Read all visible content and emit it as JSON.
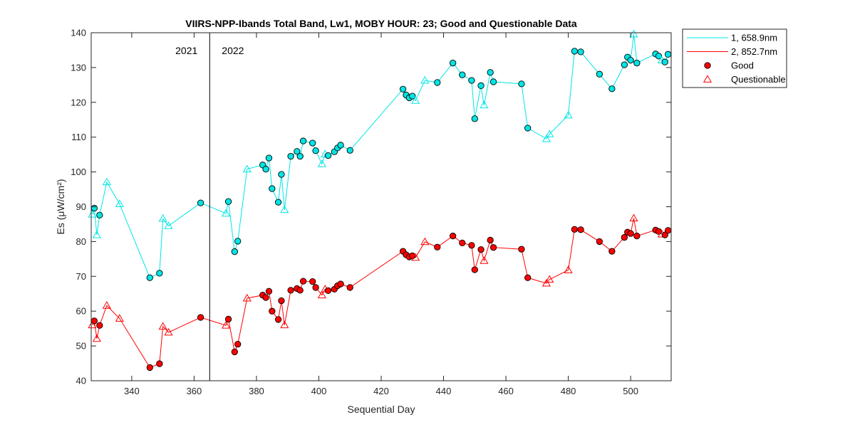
{
  "chart_data": {
    "type": "line",
    "title": "VIIRS-NPP-Ibands Total Band,  Lw1, MOBY HOUR: 23;  Good and Questionable Data",
    "xlabel": "Sequential Day",
    "ylabel": "Es (μW/cm²)",
    "xlim": [
      327,
      513
    ],
    "ylim": [
      40,
      140
    ],
    "xticks": [
      340,
      360,
      380,
      400,
      420,
      440,
      460,
      480,
      500
    ],
    "yticks": [
      40,
      50,
      60,
      70,
      80,
      90,
      100,
      110,
      120,
      130,
      140
    ],
    "grid": false,
    "year_divider": {
      "x": 365,
      "left_label": "2021",
      "right_label": "2022"
    },
    "legend": {
      "position": "outside-top-right",
      "entries": [
        "1, 658.9nm",
        "2, 852.7nm",
        "Good",
        "Questionable"
      ]
    },
    "series": [
      {
        "name": "1, 658.9nm",
        "color": "#00e5e5",
        "points": [
          {
            "x": 327.3,
            "y": 87.8,
            "q": "questionable"
          },
          {
            "x": 328.0,
            "y": 89.6,
            "q": "good"
          },
          {
            "x": 328.8,
            "y": 81.9,
            "q": "questionable"
          },
          {
            "x": 329.7,
            "y": 87.6,
            "q": "good"
          },
          {
            "x": 332.0,
            "y": 97.1,
            "q": "questionable"
          },
          {
            "x": 336.1,
            "y": 90.8,
            "q": "questionable"
          },
          {
            "x": 345.8,
            "y": 69.6,
            "q": "good"
          },
          {
            "x": 348.9,
            "y": 70.9,
            "q": "good"
          },
          {
            "x": 350.0,
            "y": 86.6,
            "q": "questionable"
          },
          {
            "x": 351.8,
            "y": 84.5,
            "q": "questionable"
          },
          {
            "x": 362.1,
            "y": 91.1,
            "q": "good"
          },
          {
            "x": 370.2,
            "y": 88.1,
            "q": "questionable"
          },
          {
            "x": 371.0,
            "y": 91.5,
            "q": "good"
          },
          {
            "x": 373.0,
            "y": 77.1,
            "q": "good"
          },
          {
            "x": 374.0,
            "y": 80.1,
            "q": "good"
          },
          {
            "x": 377.0,
            "y": 100.8,
            "q": "questionable"
          },
          {
            "x": 382.0,
            "y": 102.0,
            "q": "good"
          },
          {
            "x": 383.0,
            "y": 100.8,
            "q": "good"
          },
          {
            "x": 384.0,
            "y": 104.0,
            "q": "good"
          },
          {
            "x": 385.0,
            "y": 95.2,
            "q": "good"
          },
          {
            "x": 387.0,
            "y": 91.3,
            "q": "good"
          },
          {
            "x": 388.0,
            "y": 99.3,
            "q": "good"
          },
          {
            "x": 389.0,
            "y": 89.1,
            "q": "questionable"
          },
          {
            "x": 391.0,
            "y": 104.5,
            "q": "good"
          },
          {
            "x": 393.0,
            "y": 105.9,
            "q": "good"
          },
          {
            "x": 394.0,
            "y": 104.5,
            "q": "good"
          },
          {
            "x": 395.0,
            "y": 108.9,
            "q": "good"
          },
          {
            "x": 398.0,
            "y": 108.3,
            "q": "good"
          },
          {
            "x": 399.0,
            "y": 106.1,
            "q": "good"
          },
          {
            "x": 401.0,
            "y": 102.3,
            "q": "questionable"
          },
          {
            "x": 402.0,
            "y": 105.1,
            "q": "questionable"
          },
          {
            "x": 403.0,
            "y": 104.7,
            "q": "good"
          },
          {
            "x": 405.0,
            "y": 105.8,
            "q": "good"
          },
          {
            "x": 406.0,
            "y": 106.9,
            "q": "good"
          },
          {
            "x": 407.0,
            "y": 107.7,
            "q": "good"
          },
          {
            "x": 410.0,
            "y": 106.2,
            "q": "good"
          },
          {
            "x": 427.0,
            "y": 123.8,
            "q": "good"
          },
          {
            "x": 428.0,
            "y": 122.1,
            "q": "good"
          },
          {
            "x": 429.0,
            "y": 121.3,
            "q": "good"
          },
          {
            "x": 430.0,
            "y": 121.8,
            "q": "good"
          },
          {
            "x": 431.0,
            "y": 120.5,
            "q": "questionable"
          },
          {
            "x": 434.0,
            "y": 126.3,
            "q": "questionable"
          },
          {
            "x": 438.0,
            "y": 125.7,
            "q": "good"
          },
          {
            "x": 443.0,
            "y": 131.3,
            "q": "good"
          },
          {
            "x": 446.0,
            "y": 127.9,
            "q": "good"
          },
          {
            "x": 449.0,
            "y": 126.3,
            "q": "good"
          },
          {
            "x": 450.0,
            "y": 115.3,
            "q": "good"
          },
          {
            "x": 452.0,
            "y": 124.8,
            "q": "good"
          },
          {
            "x": 453.0,
            "y": 119.2,
            "q": "questionable"
          },
          {
            "x": 455.0,
            "y": 128.6,
            "q": "good"
          },
          {
            "x": 456.0,
            "y": 125.9,
            "q": "good"
          },
          {
            "x": 465.0,
            "y": 125.3,
            "q": "good"
          },
          {
            "x": 467.0,
            "y": 112.6,
            "q": "good"
          },
          {
            "x": 473.0,
            "y": 109.5,
            "q": "questionable"
          },
          {
            "x": 474.0,
            "y": 110.9,
            "q": "questionable"
          },
          {
            "x": 480.0,
            "y": 116.3,
            "q": "questionable"
          },
          {
            "x": 482.0,
            "y": 134.7,
            "q": "good"
          },
          {
            "x": 484.0,
            "y": 134.5,
            "q": "good"
          },
          {
            "x": 490.0,
            "y": 128.1,
            "q": "good"
          },
          {
            "x": 494.0,
            "y": 123.9,
            "q": "good"
          },
          {
            "x": 498.0,
            "y": 130.8,
            "q": "good"
          },
          {
            "x": 499.0,
            "y": 133.0,
            "q": "good"
          },
          {
            "x": 500.0,
            "y": 132.1,
            "q": "good"
          },
          {
            "x": 501.0,
            "y": 139.6,
            "q": "questionable"
          },
          {
            "x": 502.0,
            "y": 131.3,
            "q": "good"
          },
          {
            "x": 508.0,
            "y": 133.9,
            "q": "good"
          },
          {
            "x": 509.0,
            "y": 133.3,
            "q": "good"
          },
          {
            "x": 510.0,
            "y": 132.1,
            "q": "questionable"
          },
          {
            "x": 511.0,
            "y": 131.6,
            "q": "good"
          },
          {
            "x": 512.0,
            "y": 133.8,
            "q": "good"
          }
        ]
      },
      {
        "name": "2, 852.7nm",
        "color": "#ff0000",
        "points": [
          {
            "x": 327.3,
            "y": 56.0,
            "q": "questionable"
          },
          {
            "x": 328.0,
            "y": 57.2,
            "q": "good"
          },
          {
            "x": 328.8,
            "y": 52.1,
            "q": "questionable"
          },
          {
            "x": 329.7,
            "y": 55.9,
            "q": "good"
          },
          {
            "x": 332.0,
            "y": 61.6,
            "q": "questionable"
          },
          {
            "x": 336.1,
            "y": 57.9,
            "q": "questionable"
          },
          {
            "x": 345.8,
            "y": 43.8,
            "q": "good"
          },
          {
            "x": 348.9,
            "y": 44.9,
            "q": "good"
          },
          {
            "x": 350.0,
            "y": 55.6,
            "q": "questionable"
          },
          {
            "x": 351.8,
            "y": 53.9,
            "q": "questionable"
          },
          {
            "x": 362.1,
            "y": 58.2,
            "q": "good"
          },
          {
            "x": 370.2,
            "y": 55.9,
            "q": "questionable"
          },
          {
            "x": 371.0,
            "y": 57.7,
            "q": "good"
          },
          {
            "x": 373.0,
            "y": 48.3,
            "q": "good"
          },
          {
            "x": 374.0,
            "y": 50.5,
            "q": "good"
          },
          {
            "x": 377.0,
            "y": 63.7,
            "q": "questionable"
          },
          {
            "x": 382.0,
            "y": 64.6,
            "q": "good"
          },
          {
            "x": 383.0,
            "y": 63.9,
            "q": "good"
          },
          {
            "x": 384.0,
            "y": 65.7,
            "q": "good"
          },
          {
            "x": 385.0,
            "y": 60.0,
            "q": "good"
          },
          {
            "x": 387.0,
            "y": 57.6,
            "q": "good"
          },
          {
            "x": 388.0,
            "y": 63.0,
            "q": "good"
          },
          {
            "x": 389.0,
            "y": 56.0,
            "q": "questionable"
          },
          {
            "x": 391.0,
            "y": 66.0,
            "q": "good"
          },
          {
            "x": 393.0,
            "y": 66.5,
            "q": "good"
          },
          {
            "x": 394.0,
            "y": 66.0,
            "q": "good"
          },
          {
            "x": 395.0,
            "y": 68.6,
            "q": "good"
          },
          {
            "x": 398.0,
            "y": 68.5,
            "q": "good"
          },
          {
            "x": 399.0,
            "y": 66.8,
            "q": "good"
          },
          {
            "x": 401.0,
            "y": 64.6,
            "q": "questionable"
          },
          {
            "x": 402.0,
            "y": 66.3,
            "q": "questionable"
          },
          {
            "x": 403.0,
            "y": 65.9,
            "q": "good"
          },
          {
            "x": 405.0,
            "y": 66.3,
            "q": "good"
          },
          {
            "x": 406.0,
            "y": 67.3,
            "q": "good"
          },
          {
            "x": 407.0,
            "y": 67.8,
            "q": "good"
          },
          {
            "x": 410.0,
            "y": 66.8,
            "q": "good"
          },
          {
            "x": 427.0,
            "y": 77.2,
            "q": "good"
          },
          {
            "x": 428.0,
            "y": 76.2,
            "q": "good"
          },
          {
            "x": 429.0,
            "y": 75.6,
            "q": "good"
          },
          {
            "x": 430.0,
            "y": 75.9,
            "q": "good"
          },
          {
            "x": 431.0,
            "y": 75.4,
            "q": "questionable"
          },
          {
            "x": 434.0,
            "y": 79.9,
            "q": "questionable"
          },
          {
            "x": 438.0,
            "y": 78.4,
            "q": "good"
          },
          {
            "x": 443.0,
            "y": 81.6,
            "q": "good"
          },
          {
            "x": 446.0,
            "y": 79.6,
            "q": "good"
          },
          {
            "x": 449.0,
            "y": 78.9,
            "q": "good"
          },
          {
            "x": 450.0,
            "y": 71.9,
            "q": "good"
          },
          {
            "x": 452.0,
            "y": 77.7,
            "q": "good"
          },
          {
            "x": 453.0,
            "y": 74.5,
            "q": "questionable"
          },
          {
            "x": 455.0,
            "y": 80.4,
            "q": "good"
          },
          {
            "x": 456.0,
            "y": 78.3,
            "q": "good"
          },
          {
            "x": 465.0,
            "y": 77.8,
            "q": "good"
          },
          {
            "x": 467.0,
            "y": 69.6,
            "q": "good"
          },
          {
            "x": 473.0,
            "y": 68.0,
            "q": "questionable"
          },
          {
            "x": 474.0,
            "y": 69.1,
            "q": "questionable"
          },
          {
            "x": 480.0,
            "y": 71.8,
            "q": "questionable"
          },
          {
            "x": 482.0,
            "y": 83.5,
            "q": "good"
          },
          {
            "x": 484.0,
            "y": 83.4,
            "q": "good"
          },
          {
            "x": 490.0,
            "y": 80.0,
            "q": "good"
          },
          {
            "x": 494.0,
            "y": 77.2,
            "q": "good"
          },
          {
            "x": 498.0,
            "y": 81.2,
            "q": "good"
          },
          {
            "x": 499.0,
            "y": 82.7,
            "q": "good"
          },
          {
            "x": 500.0,
            "y": 82.3,
            "q": "good"
          },
          {
            "x": 501.0,
            "y": 86.7,
            "q": "questionable"
          },
          {
            "x": 502.0,
            "y": 81.6,
            "q": "good"
          },
          {
            "x": 508.0,
            "y": 83.3,
            "q": "good"
          },
          {
            "x": 509.0,
            "y": 82.9,
            "q": "good"
          },
          {
            "x": 510.0,
            "y": 82.1,
            "q": "questionable"
          },
          {
            "x": 511.0,
            "y": 81.9,
            "q": "good"
          },
          {
            "x": 512.0,
            "y": 83.2,
            "q": "good"
          }
        ]
      }
    ]
  }
}
